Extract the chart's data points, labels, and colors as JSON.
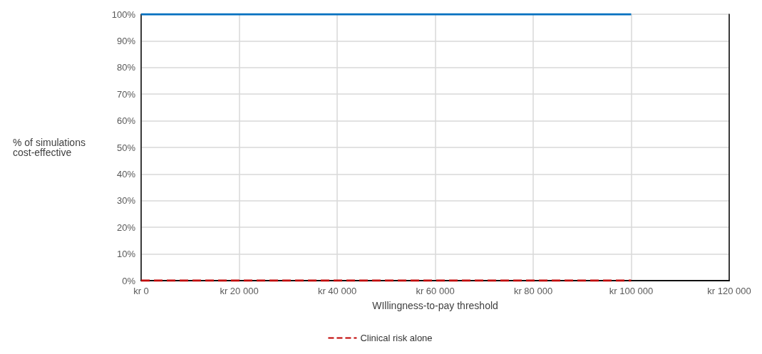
{
  "chart_data": {
    "type": "line",
    "xlabel": "WIllingness-to-pay threshold",
    "ylabel": "% of simulations cost-effective",
    "categories": [
      "kr 0",
      "kr 20 000",
      "kr 40 000",
      "kr 60 000",
      "kr 80 000",
      "kr 100 000",
      "kr 120 000"
    ],
    "series": [
      {
        "color": "#0070c0",
        "line_style": "solid",
        "values": [
          100,
          100,
          100,
          100,
          100,
          100,
          null
        ]
      },
      {
        "name": "Clinical risk alone",
        "color": "#c00000",
        "line_style": "dashed",
        "values": [
          0,
          0,
          0,
          0,
          0,
          0,
          null
        ]
      }
    ],
    "ylim": [
      0,
      100
    ],
    "yticks": [
      {
        "value": 0,
        "label": "0%"
      },
      {
        "value": 10,
        "label": "10%"
      },
      {
        "value": 20,
        "label": "20%"
      },
      {
        "value": 30,
        "label": "30%"
      },
      {
        "value": 40,
        "label": "40%"
      },
      {
        "value": 50,
        "label": "50%"
      },
      {
        "value": 60,
        "label": "60%"
      },
      {
        "value": 70,
        "label": "70%"
      },
      {
        "value": 80,
        "label": "80%"
      },
      {
        "value": 90,
        "label": "90%"
      },
      {
        "value": 100,
        "label": "100%"
      }
    ],
    "grid": true,
    "legend": "bottom",
    "marker": "none"
  }
}
